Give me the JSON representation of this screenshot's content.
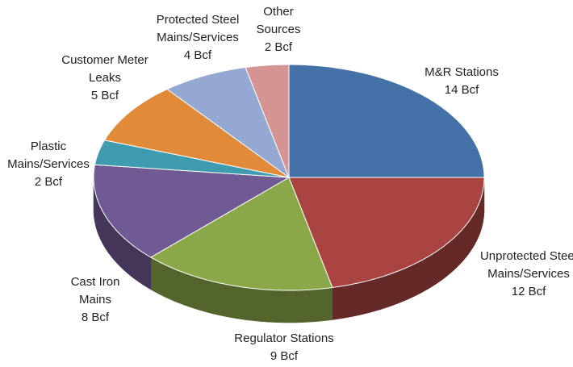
{
  "chart_data": {
    "type": "pie",
    "categories": [
      "M&R Stations",
      "Unprotected Steel Mains/Services",
      "Regulator Stations",
      "Cast Iron Mains",
      "Plastic Mains/Services",
      "Customer Meter Leaks",
      "Protected Steel Mains/Services",
      "Other Sources"
    ],
    "values": [
      14,
      12,
      9,
      8,
      2,
      5,
      4,
      2
    ],
    "value_labels": [
      "14 Bcf",
      "12 Bcf",
      "9 Bcf",
      "8 Bcf",
      "2 Bcf",
      "5 Bcf",
      "4 Bcf",
      "2 Bcf"
    ],
    "colors": [
      "#4472a8",
      "#a94442",
      "#8aa84a",
      "#705a94",
      "#3f9cb0",
      "#e08a3a",
      "#93a9d2",
      "#d49494"
    ]
  }
}
